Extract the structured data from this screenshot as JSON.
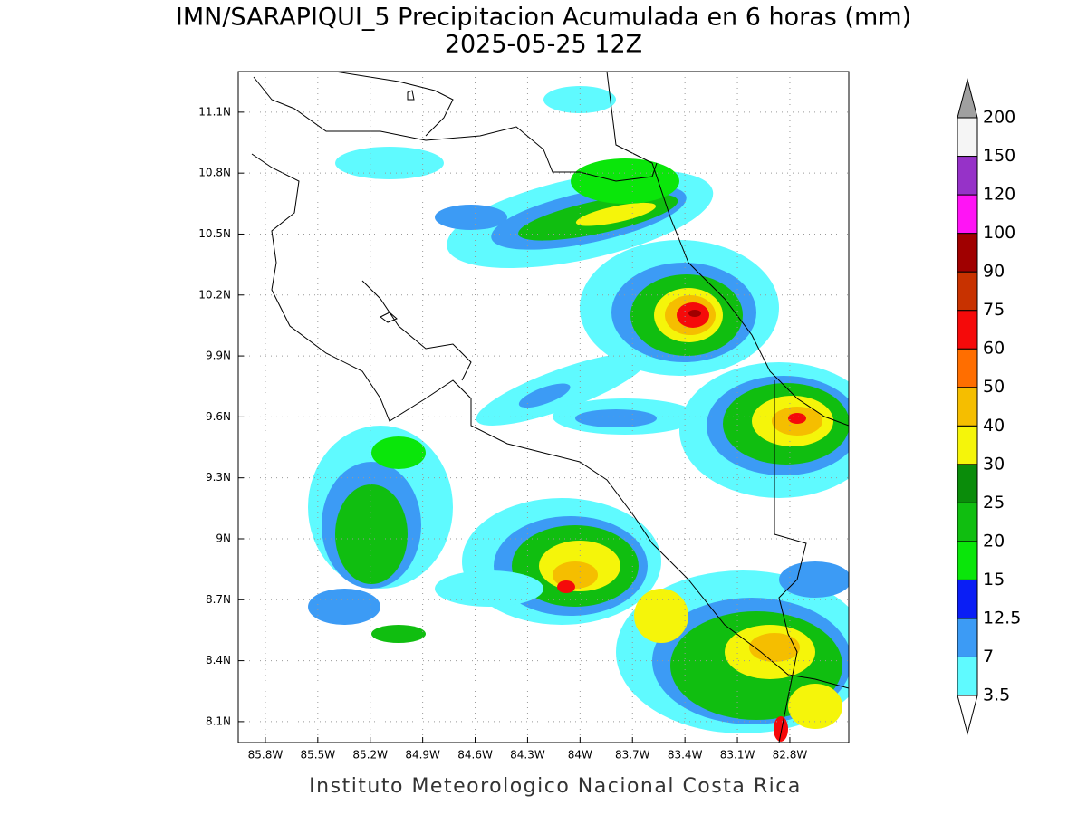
{
  "title": "IMN/SARAPIQUI_5 Precipitacion Acumulada en 6 horas (mm)",
  "subtitle": "2025-05-25 12Z",
  "footer": "Instituto Meteorologico Nacional Costa Rica",
  "map": {
    "xlim": [
      -85.955,
      -82.463
    ],
    "ylim": [
      7.997,
      11.3
    ],
    "grid": true,
    "xticks": [
      {
        "value": -85.8,
        "label": "85.8W"
      },
      {
        "value": -85.5,
        "label": "85.5W"
      },
      {
        "value": -85.2,
        "label": "85.2W"
      },
      {
        "value": -84.9,
        "label": "84.9W"
      },
      {
        "value": -84.6,
        "label": "84.6W"
      },
      {
        "value": -84.3,
        "label": "84.3W"
      },
      {
        "value": -84.0,
        "label": "84W"
      },
      {
        "value": -83.7,
        "label": "83.7W"
      },
      {
        "value": -83.4,
        "label": "83.4W"
      },
      {
        "value": -83.1,
        "label": "83.1W"
      },
      {
        "value": -82.8,
        "label": "82.8W"
      }
    ],
    "yticks": [
      {
        "value": 8.1,
        "label": "8.1N"
      },
      {
        "value": 8.4,
        "label": "8.4N"
      },
      {
        "value": 8.7,
        "label": "8.7N"
      },
      {
        "value": 9.0,
        "label": "9N"
      },
      {
        "value": 9.3,
        "label": "9.3N"
      },
      {
        "value": 9.6,
        "label": "9.6N"
      },
      {
        "value": 9.9,
        "label": "9.9N"
      },
      {
        "value": 10.2,
        "label": "10.2N"
      },
      {
        "value": 10.5,
        "label": "10.5N"
      },
      {
        "value": 10.8,
        "label": "10.8N"
      },
      {
        "value": 11.1,
        "label": "11.1N"
      }
    ]
  },
  "colorbar": {
    "levels": [
      3.5,
      7,
      12.5,
      15,
      20,
      25,
      30,
      40,
      50,
      60,
      75,
      90,
      100,
      120,
      150,
      200
    ],
    "colors": [
      "#5ffaff",
      "#3c9bf5",
      "#0a1ef5",
      "#0ae60a",
      "#10be10",
      "#0a8c0a",
      "#f5f50a",
      "#f5be00",
      "#ff6e00",
      "#f50a0a",
      "#c83200",
      "#a00000",
      "#ff14f5",
      "#9632c8",
      "#f5f5f5"
    ],
    "under_color": "#ffffff",
    "over_color": "#a0a0a0"
  }
}
